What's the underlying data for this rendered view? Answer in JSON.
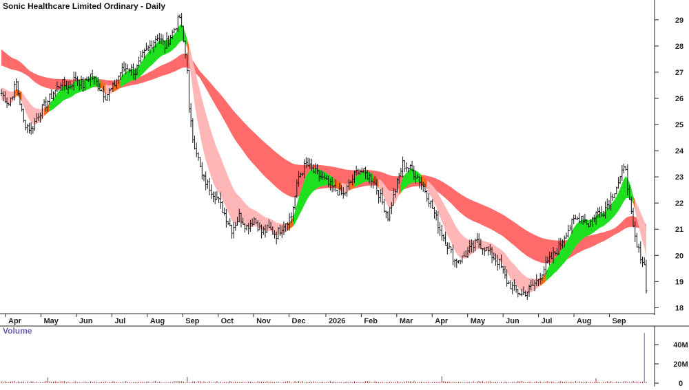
{
  "chart_data": {
    "type": "candlestick",
    "title": "Sonic Healthcare Limited Ordinary - Daily",
    "price_axis": {
      "ylim": [
        17.8,
        29.6
      ],
      "ticks": [
        "18",
        "19",
        "20",
        "21",
        "22",
        "23",
        "24",
        "25",
        "26",
        "27",
        "28",
        "29"
      ],
      "side": "right"
    },
    "x_axis": {
      "months": [
        "Apr",
        "May",
        "Jun",
        "Jul",
        "Aug",
        "Sep",
        "Oct",
        "Nov",
        "Dec",
        "2026",
        "Feb",
        "Mar",
        "Apr",
        "May",
        "Jun",
        "Jul",
        "Aug",
        "Sep"
      ]
    },
    "price_path": [
      [
        0,
        26.2
      ],
      [
        4,
        25.8
      ],
      [
        8,
        26.6
      ],
      [
        12,
        25.1
      ],
      [
        16,
        24.8
      ],
      [
        20,
        25.4
      ],
      [
        24,
        25.8
      ],
      [
        28,
        26.2
      ],
      [
        32,
        26.6
      ],
      [
        36,
        26.4
      ],
      [
        40,
        26.8
      ],
      [
        44,
        26.5
      ],
      [
        48,
        26.9
      ],
      [
        52,
        26.5
      ],
      [
        56,
        26.1
      ],
      [
        60,
        26.4
      ],
      [
        64,
        27.0
      ],
      [
        68,
        27.2
      ],
      [
        72,
        27.0
      ],
      [
        76,
        27.6
      ],
      [
        80,
        28.0
      ],
      [
        84,
        28.4
      ],
      [
        88,
        28.0
      ],
      [
        92,
        28.5
      ],
      [
        96,
        29.1
      ],
      [
        100,
        27.2
      ],
      [
        101,
        25.5
      ],
      [
        103,
        24.5
      ],
      [
        105,
        24.0
      ],
      [
        108,
        23.0
      ],
      [
        112,
        22.6
      ],
      [
        116,
        22.2
      ],
      [
        120,
        21.6
      ],
      [
        124,
        21.0
      ],
      [
        128,
        21.5
      ],
      [
        132,
        21.1
      ],
      [
        136,
        21.4
      ],
      [
        140,
        20.9
      ],
      [
        144,
        21.0
      ],
      [
        148,
        20.8
      ],
      [
        152,
        21.2
      ],
      [
        156,
        21.5
      ],
      [
        160,
        23.0
      ],
      [
        164,
        23.5
      ],
      [
        168,
        23.2
      ],
      [
        172,
        23.0
      ],
      [
        176,
        22.7
      ],
      [
        180,
        22.5
      ],
      [
        184,
        22.3
      ],
      [
        188,
        22.8
      ],
      [
        192,
        23.3
      ],
      [
        196,
        23.1
      ],
      [
        200,
        22.9
      ],
      [
        204,
        22.2
      ],
      [
        208,
        21.5
      ],
      [
        212,
        22.5
      ],
      [
        216,
        23.5
      ],
      [
        220,
        23.3
      ],
      [
        224,
        23.0
      ],
      [
        228,
        22.5
      ],
      [
        232,
        21.8
      ],
      [
        236,
        21.0
      ],
      [
        240,
        20.4
      ],
      [
        244,
        19.8
      ],
      [
        248,
        19.9
      ],
      [
        252,
        20.2
      ],
      [
        256,
        20.5
      ],
      [
        260,
        20.3
      ],
      [
        264,
        20.0
      ],
      [
        268,
        19.7
      ],
      [
        272,
        19.0
      ],
      [
        276,
        18.7
      ],
      [
        280,
        18.5
      ],
      [
        284,
        18.7
      ],
      [
        288,
        19.0
      ],
      [
        292,
        19.5
      ],
      [
        296,
        19.9
      ],
      [
        300,
        20.3
      ],
      [
        304,
        20.9
      ],
      [
        308,
        21.3
      ],
      [
        312,
        21.5
      ],
      [
        316,
        21.2
      ],
      [
        320,
        21.6
      ],
      [
        324,
        21.7
      ],
      [
        328,
        22.2
      ],
      [
        332,
        22.8
      ],
      [
        336,
        23.4
      ],
      [
        338,
        22.0
      ],
      [
        340,
        21.0
      ],
      [
        342,
        20.3
      ],
      [
        344,
        20.0
      ],
      [
        346,
        19.6
      ],
      [
        347,
        18.8
      ]
    ],
    "series": [
      {
        "name": "",
        "kind": "long-term-ribbon",
        "color": "#ff6b6b"
      },
      {
        "name": "",
        "kind": "short-term-ribbon",
        "color_up": "#22dd22",
        "color_down": "#ffb3b3",
        "color_flat": "#ff6a1a"
      }
    ],
    "volume": {
      "label": "Volume",
      "ylim": [
        0,
        55
      ],
      "ticks": [
        "0",
        "20M",
        "40M"
      ],
      "spike_value": 52
    },
    "colors": {
      "bar": "#111111",
      "long_ribbon": "#ff6b6b",
      "short_up": "#1ee01e",
      "short_down": "#ffb6b6",
      "short_flat": "#ff6a1a",
      "volume": "#9b2a2a",
      "volume_spike": "#6a5fb3",
      "axis": "#222222"
    },
    "grid": false
  }
}
